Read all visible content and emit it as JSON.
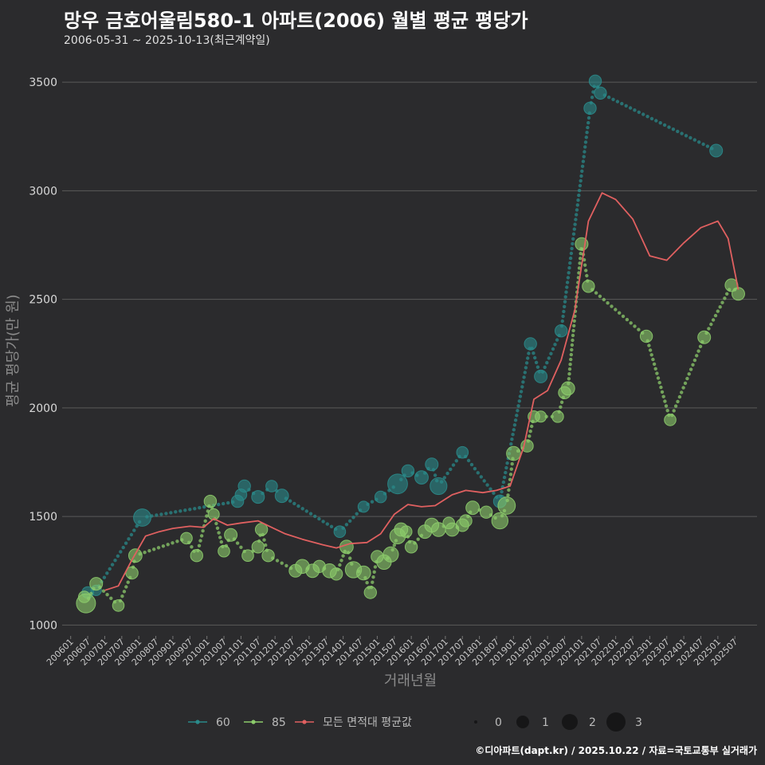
{
  "title": "망우 금호어울림580-1 아파트(2006) 월별 평균 평당가",
  "subtitle": "2006-05-31 ~ 2025-10-13(최근계약일)",
  "footer": "©디아파트(dapt.kr) / 2025.10.22 / 자료=국토교통부 실거래가",
  "chart_data": {
    "type": "line",
    "xlabel": "거래년월",
    "ylabel": "평균 평당가(만 원)",
    "ylim": [
      950,
      3640
    ],
    "xlim": [
      2005.75,
      2026.15
    ],
    "yticks": [
      1000,
      1500,
      2000,
      2500,
      3000,
      3500
    ],
    "xtick_labels": [
      "200601",
      "200607",
      "200701",
      "200707",
      "200801",
      "200807",
      "200901",
      "200907",
      "201001",
      "201007",
      "201101",
      "201107",
      "201201",
      "201207",
      "201301",
      "201307",
      "201401",
      "201407",
      "201501",
      "201507",
      "201601",
      "201607",
      "201701",
      "201707",
      "201801",
      "201807",
      "201901",
      "201907",
      "202001",
      "202007",
      "202101",
      "202107",
      "202201",
      "202207",
      "202301",
      "202307",
      "202401",
      "202407",
      "202501",
      "202507"
    ],
    "colors": {
      "s60": "#2a8a8a",
      "s85": "#8ccb6b",
      "avg": "#e06060",
      "grid": "#5a5a5a"
    },
    "series": [
      {
        "name": "60",
        "key": "s60",
        "x": [
          2006.5,
          2006.75,
          2008.1,
          2010.9,
          2011.0,
          2011.1,
          2011.5,
          2011.9,
          2012.2,
          2013.9,
          2014.6,
          2015.1,
          2015.6,
          2015.9,
          2016.3,
          2016.6,
          2016.8,
          2017.5,
          2018.6,
          2019.5,
          2019.8,
          2020.4,
          2021.25,
          2021.4,
          2021.55,
          2024.95
        ],
        "y": [
          1150,
          1160,
          1495,
          1570,
          1600,
          1640,
          1590,
          1640,
          1595,
          1430,
          1545,
          1590,
          1650,
          1710,
          1680,
          1740,
          1640,
          1795,
          1570,
          2295,
          2145,
          2355,
          3380,
          3505,
          3450,
          3185
        ],
        "sizes": [
          1.2,
          1.0,
          2.2,
          1.3,
          1.2,
          1.3,
          1.4,
          1.2,
          1.5,
          1.2,
          1.1,
          1.2,
          2.6,
          1.3,
          1.5,
          1.4,
          2.1,
          1.2,
          1.4,
          1.3,
          1.4,
          1.3,
          1.3,
          1.3,
          1.3,
          1.4
        ]
      },
      {
        "name": "85",
        "key": "s85",
        "x": [
          2006.4,
          2006.45,
          2006.75,
          2007.4,
          2007.8,
          2007.9,
          2009.4,
          2009.7,
          2010.1,
          2010.2,
          2010.5,
          2010.7,
          2011.2,
          2011.5,
          2011.6,
          2011.8,
          2012.6,
          2012.8,
          2013.1,
          2013.3,
          2013.6,
          2013.8,
          2014.1,
          2014.3,
          2014.6,
          2014.8,
          2015.0,
          2015.2,
          2015.4,
          2015.6,
          2015.7,
          2015.85,
          2016.0,
          2016.4,
          2016.6,
          2016.8,
          2017.1,
          2017.2,
          2017.5,
          2017.6,
          2017.8,
          2018.2,
          2018.6,
          2018.8,
          2019.0,
          2019.4,
          2019.6,
          2019.8,
          2020.3,
          2020.5,
          2020.6,
          2021.0,
          2021.2,
          2022.9,
          2023.6,
          2024.6,
          2025.4,
          2025.6
        ],
        "y": [
          1130,
          1100,
          1190,
          1090,
          1240,
          1320,
          1400,
          1320,
          1570,
          1510,
          1340,
          1415,
          1320,
          1360,
          1440,
          1320,
          1250,
          1270,
          1250,
          1270,
          1250,
          1235,
          1360,
          1255,
          1240,
          1150,
          1315,
          1290,
          1325,
          1410,
          1440,
          1430,
          1360,
          1430,
          1460,
          1440,
          1470,
          1440,
          1460,
          1480,
          1540,
          1520,
          1480,
          1550,
          1790,
          1825,
          1960,
          1960,
          1960,
          2070,
          2090,
          2755,
          2560,
          2330,
          1945,
          2325,
          2565,
          2525
        ],
        "sizes": [
          1.2,
          2.5,
          1.4,
          1.2,
          1.3,
          1.5,
          1.2,
          1.3,
          1.3,
          1.1,
          1.2,
          1.4,
          1.2,
          1.3,
          1.3,
          1.3,
          1.4,
          1.6,
          1.5,
          1.3,
          1.6,
          1.3,
          1.5,
          2.0,
          1.6,
          1.3,
          1.3,
          1.7,
          1.8,
          1.9,
          1.5,
          1.2,
          1.3,
          1.5,
          1.6,
          1.6,
          1.2,
          1.5,
          1.4,
          1.3,
          1.5,
          1.3,
          2.0,
          2.2,
          1.6,
          1.3,
          1.2,
          1.1,
          1.2,
          1.3,
          1.5,
          1.4,
          1.3,
          1.3,
          1.2,
          1.4,
          1.4,
          1.4
        ]
      },
      {
        "name": "모든 면적대 평균값",
        "key": "avg",
        "x": [
          2007.0,
          2007.4,
          2007.8,
          2008.2,
          2008.6,
          2009.0,
          2009.5,
          2009.9,
          2010.2,
          2010.6,
          2011.0,
          2011.5,
          2011.9,
          2012.3,
          2012.8,
          2013.4,
          2013.8,
          2014.2,
          2014.7,
          2015.1,
          2015.5,
          2015.9,
          2016.3,
          2016.7,
          2017.2,
          2017.6,
          2018.1,
          2018.5,
          2018.9,
          2019.3,
          2019.6,
          2020.0,
          2020.4,
          2020.8,
          2021.2,
          2021.6,
          2022.0,
          2022.5,
          2023.0,
          2023.5,
          2024.0,
          2024.5,
          2025.0,
          2025.3,
          2025.6
        ],
        "y": [
          1160,
          1180,
          1300,
          1410,
          1430,
          1445,
          1455,
          1450,
          1490,
          1460,
          1470,
          1480,
          1450,
          1420,
          1395,
          1370,
          1355,
          1375,
          1380,
          1420,
          1510,
          1555,
          1545,
          1550,
          1600,
          1620,
          1610,
          1620,
          1640,
          1820,
          2040,
          2080,
          2220,
          2450,
          2860,
          2990,
          2960,
          2870,
          2700,
          2680,
          2760,
          2830,
          2860,
          2780,
          2545
        ]
      }
    ],
    "size_legend": [
      "0",
      "1",
      "2",
      "3"
    ],
    "legend_labels": [
      "60",
      "85",
      "모든 면적대 평균값"
    ]
  }
}
